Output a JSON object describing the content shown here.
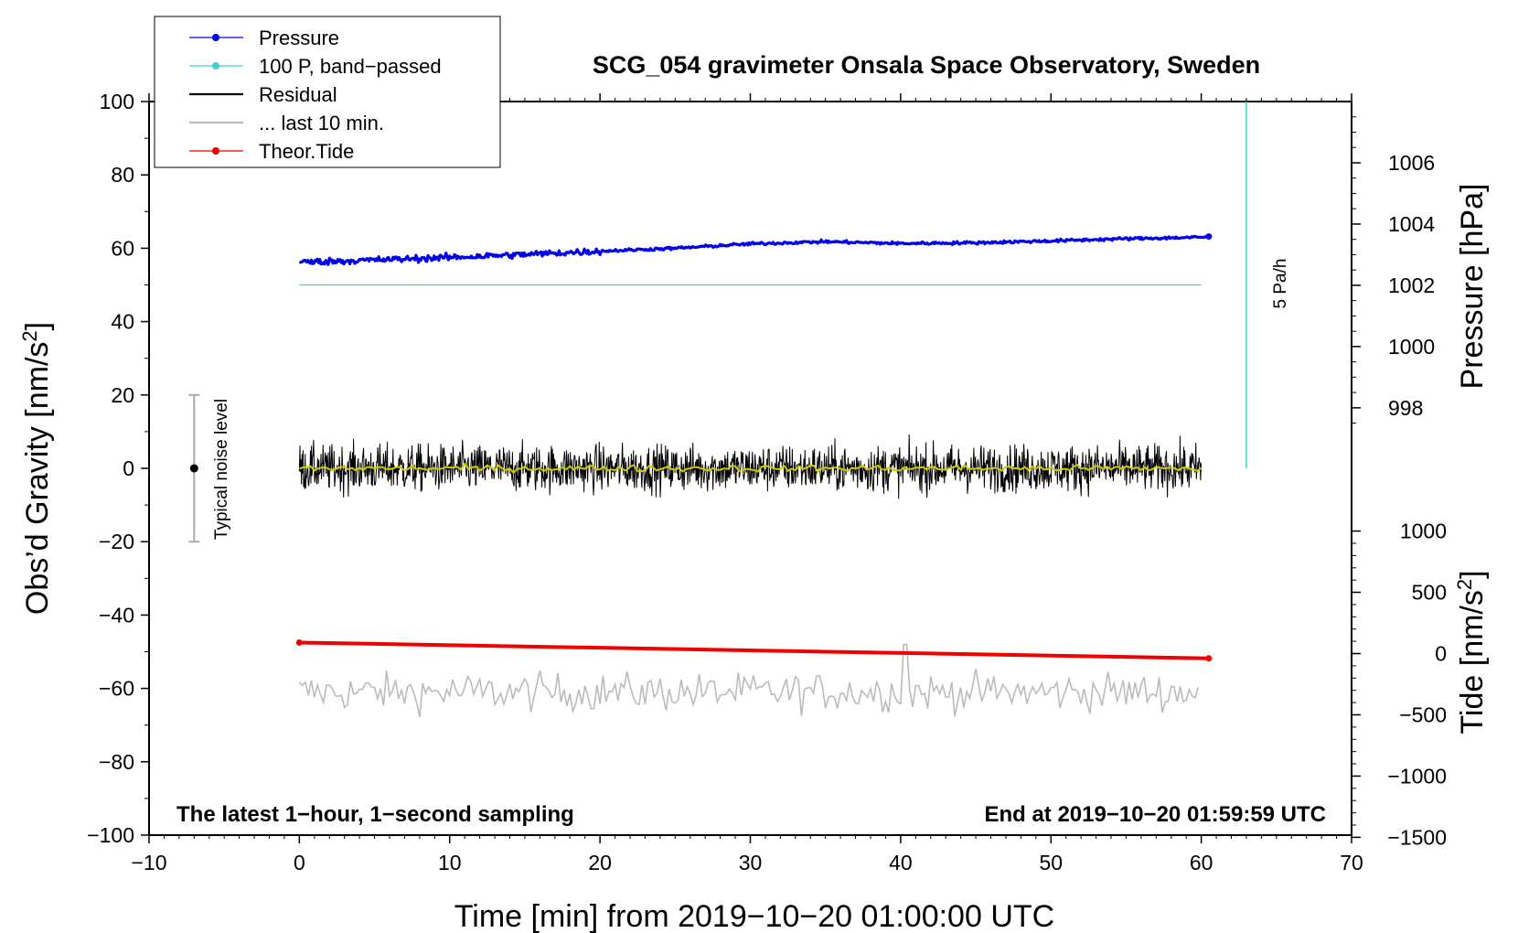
{
  "chart_data": {
    "type": "line",
    "title": "SCG_054 gravimeter Onsala Space Observatory, Sweden",
    "xlabel": "Time [min] from 2019−10−20 01:00:00 UTC",
    "ylabel_main": "Obs’d Gravity [nm/s",
    "ylabel_main_sup": "2",
    "ylabel_main_end": "]",
    "ylabel_pressure": "Pressure [hPa]",
    "ylabel_tide": "Tide [nm/s",
    "ylabel_tide_sup": "2",
    "ylabel_tide_end": "]",
    "xlim": [
      -10,
      70
    ],
    "ylim": [
      -100,
      100
    ],
    "x_ticks": [
      -10,
      0,
      10,
      20,
      30,
      40,
      50,
      60,
      70
    ],
    "x_tick_labels": [
      "−10",
      "0",
      "10",
      "20",
      "30",
      "40",
      "50",
      "60",
      "70"
    ],
    "y_ticks": [
      100,
      80,
      60,
      40,
      20,
      0,
      -20,
      -40,
      -60,
      -80,
      -100
    ],
    "y_tick_labels": [
      "100",
      "80",
      "60",
      "40",
      "20",
      "0",
      "−20",
      "−40",
      "−60",
      "−80",
      "−100"
    ],
    "pressure_axis": {
      "ticks": [
        1006,
        1004,
        1002,
        1000,
        998
      ],
      "tick_labels": [
        "1006",
        "1004",
        "1002",
        "1000",
        "998"
      ],
      "ref_value": 998,
      "ref_gravity": 16.5,
      "gravity_per_hPa": 8.35
    },
    "tide_axis": {
      "ticks": [
        1000,
        500,
        0,
        -500,
        -1000,
        -1500
      ],
      "tick_labels": [
        "1000",
        "500",
        "0",
        "−500",
        "−1000",
        "−1500"
      ],
      "gravity_at_zero": -50.5,
      "gravity_per_1000": 33.4
    },
    "legend": [
      {
        "label": "Pressure",
        "color": "#0000ee",
        "marker": true
      },
      {
        "label": "100 P, band−passed",
        "color": "#40d0d0",
        "marker": true
      },
      {
        "label": "Residual",
        "color": "#000000",
        "marker": false
      },
      {
        "label": "... last 10 min.",
        "color": "#bbbbbb",
        "marker": false
      },
      {
        "label": "Theor.Tide",
        "color": "#ee0000",
        "marker": true
      }
    ],
    "series": [
      {
        "name": "Pressure",
        "color": "#0000ee",
        "x": [
          0,
          5,
          10,
          15,
          20,
          25,
          30,
          35,
          40,
          45,
          50,
          55,
          60,
          60.5
        ],
        "y": [
          56.2,
          56.8,
          57.5,
          58.3,
          59.2,
          60.0,
          61.2,
          61.8,
          61.3,
          61.5,
          62.0,
          62.6,
          63.0,
          63.2
        ]
      },
      {
        "name": "100 P, band−passed",
        "color": "#40d0d0",
        "x": [
          0,
          60
        ],
        "y": [
          50,
          50
        ]
      },
      {
        "name": "Residual",
        "color": "#000000",
        "x_range": [
          0,
          60
        ],
        "y_center": 0,
        "y_range": [
          -12,
          13
        ]
      },
      {
        "name": "Residual smoothed",
        "color": "#cccc00",
        "x_range": [
          0,
          60
        ],
        "y_center": 0
      },
      {
        "name": "... last 10 min.",
        "color": "#bbbbbb",
        "x_range": [
          0,
          60
        ],
        "y_center": -61,
        "y_range": [
          -71,
          -48
        ]
      },
      {
        "name": "Theor.Tide",
        "color": "#ee0000",
        "x": [
          0,
          60.5
        ],
        "y": [
          -47.5,
          -51.8
        ]
      }
    ],
    "annotations": {
      "noise_label": "Typical noise level",
      "noise_x": -7,
      "noise_range": [
        -20,
        20
      ],
      "rate_label": "5 Pa/h",
      "rate_x": 63,
      "rate_range": [
        0,
        100
      ],
      "bottom_left": "The latest 1−hour, 1−second sampling",
      "bottom_right": "End at 2019−10−20 01:59:59 UTC"
    }
  }
}
